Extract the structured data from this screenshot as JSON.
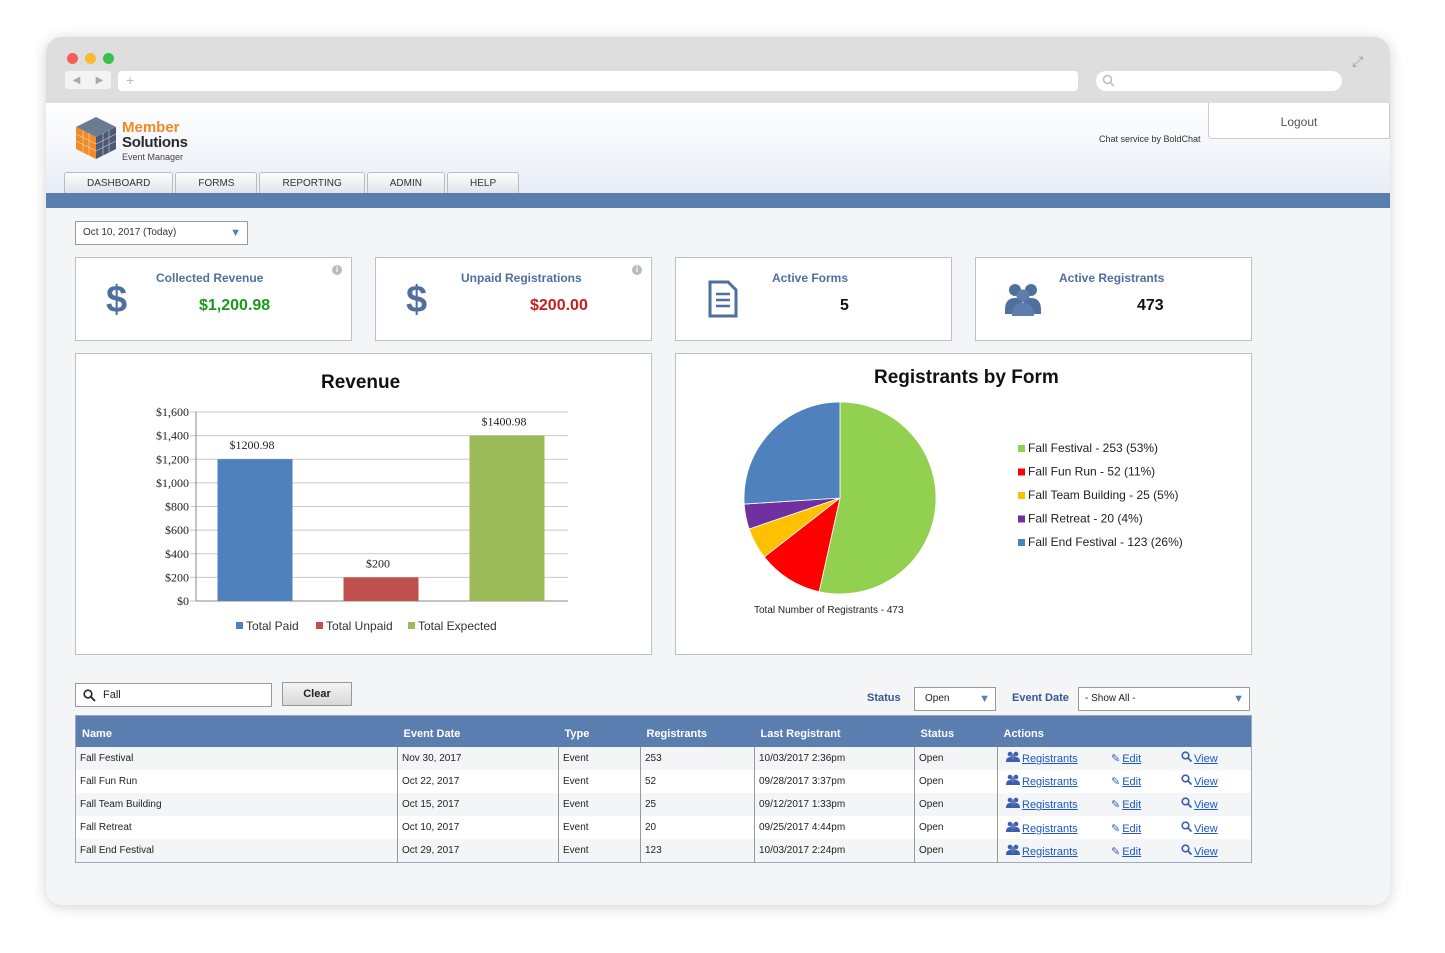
{
  "browser": {
    "new_tab": "+"
  },
  "brand": {
    "line1": "Member",
    "line2": "Solutions",
    "line3": "Event Manager"
  },
  "header": {
    "chat": "Chat service by BoldChat",
    "logout": "Logout"
  },
  "nav": {
    "tabs": [
      "DASHBOARD",
      "FORMS",
      "REPORTING",
      "ADMIN",
      "HELP"
    ]
  },
  "date_filter": {
    "value": "Oct 10, 2017 (Today)"
  },
  "cards": [
    {
      "title": "Collected Revenue",
      "value": "$1,200.98",
      "color": "#1a9a1a",
      "icon": "dollar-icon"
    },
    {
      "title": "Unpaid Registrations",
      "value": "$200.00",
      "color": "#c81e1e",
      "icon": "dollar-icon"
    },
    {
      "title": "Active Forms",
      "value": "5",
      "color": "#111111",
      "icon": "document-icon"
    },
    {
      "title": "Active Registrants",
      "value": "473",
      "color": "#111111",
      "icon": "users-icon"
    }
  ],
  "chart_data": [
    {
      "type": "bar",
      "title": "Revenue",
      "categories": [
        "Total Paid",
        "Total Unpaid",
        "Total Expected"
      ],
      "values": [
        1200.98,
        200,
        1400.98
      ],
      "data_labels": [
        "$1200.98",
        "$200",
        "$1400.98"
      ],
      "colors": [
        "#4f81bd",
        "#c0504d",
        "#9bbb59"
      ],
      "y_ticks": [
        "$0",
        "$200",
        "$400",
        "$600",
        "$800",
        "$1,000",
        "$1,200",
        "$1,400",
        "$1,600"
      ],
      "ylim": [
        0,
        1600
      ],
      "grid": true,
      "legend": "bottom"
    },
    {
      "type": "pie",
      "title": "Registrants by Form",
      "labels": [
        "Fall Festival - 253 (53%)",
        "Fall Fun Run - 52 (11%)",
        "Fall Team Building - 25 (5%)",
        "Fall Retreat - 20 (4%)",
        "Fall End Festival - 123 (26%)"
      ],
      "values": [
        253,
        52,
        25,
        20,
        123
      ],
      "colors": [
        "#92d050",
        "#ff0000",
        "#ffc000",
        "#7030a0",
        "#4f81bd"
      ],
      "footer": "Total Number of Registrants - 473",
      "legend": "right"
    }
  ],
  "search": {
    "value": "Fall",
    "clear": "Clear"
  },
  "filters": {
    "status_label": "Status",
    "status_value": "Open",
    "date_label": "Event Date",
    "date_value": "- Show All -"
  },
  "table": {
    "columns": [
      "Name",
      "Event Date",
      "Type",
      "Registrants",
      "Last Registrant",
      "Status",
      "Actions"
    ],
    "actions": {
      "registrants": "Registrants",
      "edit": "Edit",
      "view": "View"
    },
    "rows": [
      {
        "name": "Fall Festival",
        "date": "Nov 30, 2017",
        "type": "Event",
        "registrants": "253",
        "last": "10/03/2017 2:36pm",
        "status": "Open"
      },
      {
        "name": "Fall Fun Run",
        "date": "Oct 22, 2017",
        "type": "Event",
        "registrants": "52",
        "last": "09/28/2017 3:37pm",
        "status": "Open"
      },
      {
        "name": "Fall Team Building",
        "date": "Oct 15, 2017",
        "type": "Event",
        "registrants": "25",
        "last": "09/12/2017 1:33pm",
        "status": "Open"
      },
      {
        "name": "Fall Retreat",
        "date": "Oct 10, 2017",
        "type": "Event",
        "registrants": "20",
        "last": "09/25/2017 4:44pm",
        "status": "Open"
      },
      {
        "name": "Fall End Festival",
        "date": "Oct 29, 2017",
        "type": "Event",
        "registrants": "123",
        "last": "10/03/2017 2:24pm",
        "status": "Open"
      }
    ]
  }
}
